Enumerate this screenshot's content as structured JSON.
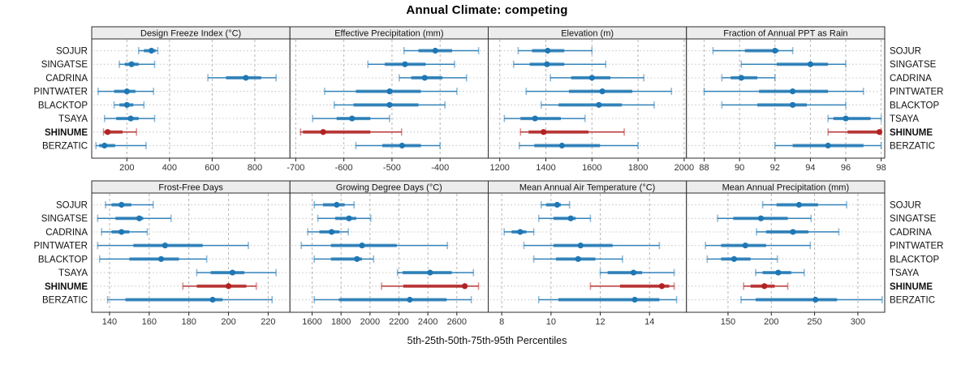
{
  "title": "Annual Climate: competing",
  "xlabel": "5th-25th-50th-75th-95th Percentiles",
  "sites": [
    "SOJUR",
    "SINGATSE",
    "CADRINA",
    "PINTWATER",
    "BLACKTOP",
    "TSAYA",
    "SHINUME",
    "BERZATIC"
  ],
  "highlight_site": "SHINUME",
  "colors": {
    "normal": "#1f77b4",
    "highlight": "#b22222",
    "strip_bg": "#ececec",
    "panel_border": "#2b2b2b",
    "grid_h": "#cccccc",
    "grid_v": "#b5b5b5",
    "tick_text": "#333333",
    "label_text": "#111111"
  },
  "chart_data": {
    "type": "dot-interval",
    "percentiles": [
      5,
      25,
      50,
      75,
      95
    ],
    "legend": "thin line = 5th-95th, thick line = 25th-75th, dot = median (50th); SHINUME highlighted in red",
    "grid": "dotted horizontal per site, dotted vertical per tick",
    "panels": [
      {
        "id": "design-freeze-index",
        "title": "Design Freeze Index (°C)",
        "row": 0,
        "col": 0,
        "xlim": [
          35,
          965
        ],
        "ticks": [
          200,
          400,
          600,
          800
        ],
        "series": {
          "SOJUR": [
            255,
            280,
            315,
            335,
            345
          ],
          "SINGATSE": [
            165,
            190,
            222,
            255,
            330
          ],
          "CADRINA": [
            580,
            665,
            758,
            830,
            900
          ],
          "PINTWATER": [
            65,
            140,
            200,
            240,
            325
          ],
          "BLACKTOP": [
            140,
            165,
            200,
            230,
            280
          ],
          "TSAYA": [
            95,
            150,
            218,
            255,
            330
          ],
          "SHINUME": [
            90,
            95,
            110,
            180,
            245
          ],
          "BERZATIC": [
            55,
            70,
            95,
            145,
            290
          ]
        }
      },
      {
        "id": "effective-precipitation",
        "title": "Effective Precipitation (mm)",
        "row": 0,
        "col": 1,
        "xlim": [
          -712,
          -300
        ],
        "ticks": [
          -700,
          -600,
          -500,
          -400
        ],
        "series": {
          "SOJUR": [
            -475,
            -445,
            -410,
            -375,
            -320
          ],
          "SINGATSE": [
            -550,
            -515,
            -473,
            -430,
            -370
          ],
          "CADRINA": [
            -485,
            -460,
            -432,
            -395,
            -345
          ],
          "PINTWATER": [
            -640,
            -575,
            -505,
            -440,
            -365
          ],
          "BLACKTOP": [
            -620,
            -580,
            -505,
            -445,
            -390
          ],
          "TSAYA": [
            -665,
            -615,
            -583,
            -545,
            -505
          ],
          "SHINUME": [
            -690,
            -685,
            -643,
            -545,
            -480
          ],
          "BERZATIC": [
            -575,
            -520,
            -479,
            -440,
            -400
          ]
        }
      },
      {
        "id": "elevation",
        "title": "Elevation (m)",
        "row": 0,
        "col": 2,
        "xlim": [
          1150,
          2010
        ],
        "ticks": [
          1200,
          1400,
          1600,
          1800,
          2000
        ],
        "series": {
          "SOJUR": [
            1280,
            1340,
            1408,
            1480,
            1600
          ],
          "SINGATSE": [
            1260,
            1330,
            1405,
            1480,
            1660
          ],
          "CADRINA": [
            1420,
            1510,
            1600,
            1680,
            1825
          ],
          "PINTWATER": [
            1315,
            1500,
            1645,
            1775,
            1945
          ],
          "BLACKTOP": [
            1380,
            1455,
            1630,
            1730,
            1870
          ],
          "TSAYA": [
            1220,
            1290,
            1353,
            1465,
            1570
          ],
          "SHINUME": [
            1290,
            1325,
            1390,
            1585,
            1740
          ],
          "BERZATIC": [
            1285,
            1350,
            1470,
            1635,
            1800
          ]
        }
      },
      {
        "id": "fraction-ppt-rain",
        "title": "Fraction of Annual PPT as Rain",
        "row": 0,
        "col": 3,
        "xlim": [
          87,
          98.2
        ],
        "ticks": [
          88,
          90,
          92,
          94,
          96,
          98
        ],
        "series": {
          "SOJUR": [
            88.5,
            90.3,
            92.0,
            92.2,
            93.0
          ],
          "SINGATSE": [
            90.1,
            92.1,
            94.0,
            95.0,
            96.0
          ],
          "CADRINA": [
            89.0,
            89.5,
            90.1,
            91.0,
            92.0
          ],
          "PINTWATER": [
            88.0,
            91.1,
            93.0,
            95.0,
            97.0
          ],
          "BLACKTOP": [
            89.0,
            91.0,
            93.0,
            93.8,
            96.0
          ],
          "TSAYA": [
            95.0,
            95.3,
            96.0,
            97.4,
            98.0
          ],
          "SHINUME": [
            95.0,
            96.1,
            97.9,
            98.0,
            98.0
          ],
          "BERZATIC": [
            92.0,
            93.0,
            95.0,
            97.0,
            98.0
          ]
        }
      },
      {
        "id": "frost-free-days",
        "title": "Frost-Free Days",
        "row": 1,
        "col": 0,
        "xlim": [
          131,
          231
        ],
        "ticks": [
          140,
          160,
          180,
          200,
          220
        ],
        "series": {
          "SOJUR": [
            138,
            141,
            146,
            151,
            162
          ],
          "SINGATSE": [
            134,
            143,
            155,
            157,
            171
          ],
          "CADRINA": [
            136,
            141,
            146,
            150,
            159
          ],
          "PINTWATER": [
            134,
            152,
            168,
            187,
            210
          ],
          "BLACKTOP": [
            135,
            150,
            166,
            175,
            189
          ],
          "TSAYA": [
            184,
            191,
            202,
            208,
            224
          ],
          "SHINUME": [
            177,
            184,
            200,
            209,
            214
          ],
          "BERZATIC": [
            139,
            148,
            192,
            197,
            222
          ]
        }
      },
      {
        "id": "growing-degree-days",
        "title": "Growing Degree Days (°C)",
        "row": 1,
        "col": 1,
        "xlim": [
          1447,
          2817
        ],
        "ticks": [
          1600,
          1800,
          2000,
          2200,
          2400,
          2600
        ],
        "series": {
          "SOJUR": [
            1615,
            1675,
            1770,
            1825,
            1890
          ],
          "SINGATSE": [
            1640,
            1760,
            1855,
            1905,
            2005
          ],
          "CADRINA": [
            1570,
            1650,
            1735,
            1790,
            1850
          ],
          "PINTWATER": [
            1525,
            1730,
            1945,
            2185,
            2535
          ],
          "BLACKTOP": [
            1615,
            1730,
            1910,
            1945,
            2025
          ],
          "TSAYA": [
            2190,
            2225,
            2415,
            2565,
            2715
          ],
          "SHINUME": [
            2080,
            2230,
            2655,
            2665,
            2750
          ],
          "BERZATIC": [
            1615,
            1785,
            2275,
            2530,
            2700
          ]
        }
      },
      {
        "id": "mean-annual-air-temperature",
        "title": "Mean Annual Air Temperature (°C)",
        "row": 1,
        "col": 2,
        "xlim": [
          7.45,
          15.5
        ],
        "ticks": [
          8,
          10,
          12,
          14
        ],
        "series": {
          "SOJUR": [
            9.6,
            9.8,
            10.25,
            10.4,
            10.75
          ],
          "SINGATSE": [
            9.5,
            10.1,
            10.8,
            11.0,
            11.6
          ],
          "CADRINA": [
            8.1,
            8.4,
            8.75,
            9.0,
            9.3
          ],
          "PINTWATER": [
            8.9,
            10.1,
            11.2,
            12.5,
            14.4
          ],
          "BLACKTOP": [
            9.3,
            10.2,
            11.1,
            11.8,
            12.9
          ],
          "TSAYA": [
            12.0,
            12.3,
            13.35,
            13.7,
            15.0
          ],
          "SHINUME": [
            11.6,
            12.8,
            14.5,
            14.8,
            15.0
          ],
          "BERZATIC": [
            9.5,
            10.3,
            13.4,
            14.4,
            15.1
          ]
        }
      },
      {
        "id": "mean-annual-precipitation",
        "title": "Mean Annual Precipitation (mm)",
        "row": 1,
        "col": 3,
        "xlim": [
          102,
          331
        ],
        "ticks": [
          150,
          200,
          250,
          300
        ],
        "series": {
          "SOJUR": [
            190,
            206,
            232,
            254,
            287
          ],
          "SINGATSE": [
            138,
            156,
            188,
            219,
            246
          ],
          "CADRINA": [
            183,
            194,
            225,
            243,
            278
          ],
          "PINTWATER": [
            124,
            142,
            170,
            194,
            245
          ],
          "BLACKTOP": [
            126,
            142,
            157,
            176,
            207
          ],
          "TSAYA": [
            182,
            190,
            208,
            223,
            238
          ],
          "SHINUME": [
            168,
            176,
            192,
            204,
            219
          ],
          "BERZATIC": [
            165,
            182,
            251,
            276,
            328
          ]
        }
      }
    ]
  }
}
